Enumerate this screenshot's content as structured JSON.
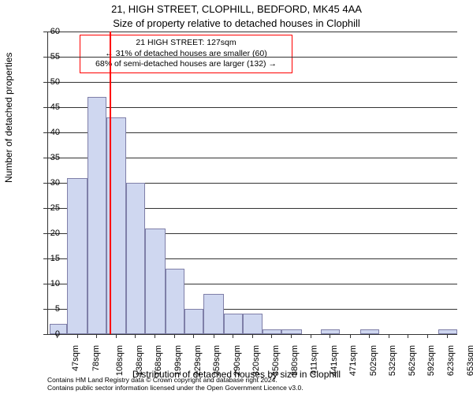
{
  "titles": {
    "address": "21, HIGH STREET, CLOPHILL, BEDFORD, MK45 4AA",
    "subtitle": "Size of property relative to detached houses in Clophill"
  },
  "chart": {
    "type": "histogram",
    "ylabel": "Number of detached properties",
    "xlabel": "Distribution of detached houses by size in Clophill",
    "ylim": [
      0,
      60
    ],
    "ytick_step": 5,
    "plot_bg": "#ffffff",
    "grid_color": "#333333",
    "bar_fill": "#cfd7f0",
    "bar_border": "#7f7fa8",
    "reference_line": {
      "x": 127,
      "color": "#ff0000",
      "width": 2
    },
    "xticks": [
      "47sqm",
      "78sqm",
      "108sqm",
      "138sqm",
      "168sqm",
      "199sqm",
      "229sqm",
      "259sqm",
      "290sqm",
      "320sqm",
      "350sqm",
      "380sqm",
      "411sqm",
      "441sqm",
      "471sqm",
      "502sqm",
      "532sqm",
      "562sqm",
      "592sqm",
      "623sqm",
      "653sqm"
    ],
    "xmin": 32,
    "xmax": 668,
    "bars": [
      {
        "x0": 35,
        "x1": 62,
        "h": 2
      },
      {
        "x0": 62,
        "x1": 93,
        "h": 31
      },
      {
        "x0": 93,
        "x1": 123,
        "h": 47
      },
      {
        "x0": 123,
        "x1": 153,
        "h": 43
      },
      {
        "x0": 153,
        "x1": 183,
        "h": 30
      },
      {
        "x0": 183,
        "x1": 214,
        "h": 21
      },
      {
        "x0": 214,
        "x1": 244,
        "h": 13
      },
      {
        "x0": 244,
        "x1": 274,
        "h": 5
      },
      {
        "x0": 274,
        "x1": 305,
        "h": 8
      },
      {
        "x0": 305,
        "x1": 335,
        "h": 4
      },
      {
        "x0": 335,
        "x1": 365,
        "h": 4
      },
      {
        "x0": 365,
        "x1": 395,
        "h": 1
      },
      {
        "x0": 395,
        "x1": 426,
        "h": 1
      },
      {
        "x0": 426,
        "x1": 456,
        "h": 0
      },
      {
        "x0": 456,
        "x1": 486,
        "h": 1
      },
      {
        "x0": 486,
        "x1": 517,
        "h": 0
      },
      {
        "x0": 517,
        "x1": 547,
        "h": 1
      },
      {
        "x0": 547,
        "x1": 577,
        "h": 0
      },
      {
        "x0": 577,
        "x1": 608,
        "h": 0
      },
      {
        "x0": 608,
        "x1": 638,
        "h": 0
      },
      {
        "x0": 638,
        "x1": 668,
        "h": 1
      }
    ]
  },
  "annotation": {
    "border_color": "#ff0000",
    "lines": [
      "21 HIGH STREET: 127sqm",
      "← 31% of detached houses are smaller (60)",
      "68% of semi-detached houses are larger (132) →"
    ]
  },
  "footer": {
    "line1": "Contains HM Land Registry data © Crown copyright and database right 2024.",
    "line2": "Contains public sector information licensed under the Open Government Licence v3.0."
  }
}
